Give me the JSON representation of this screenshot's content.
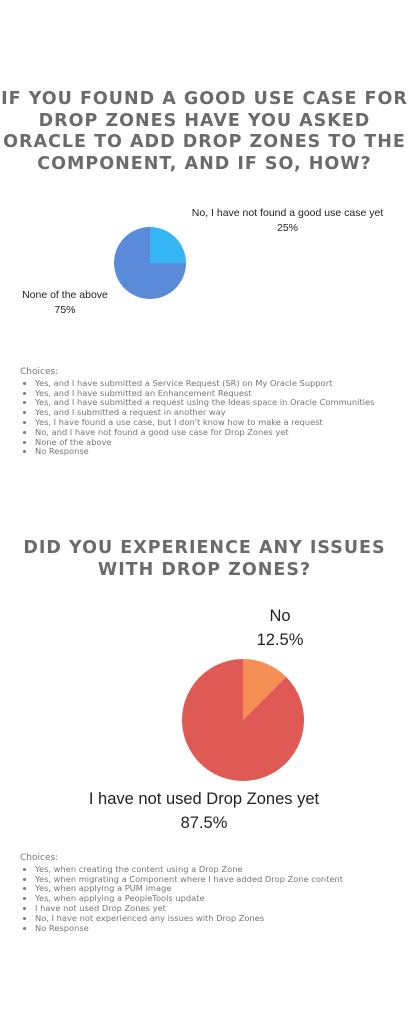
{
  "q1": {
    "title": "If you found a good use case for Drop Zones have you asked Oracle to add Drop Zones to the component, and if so, how?",
    "choices_title": "Choices:",
    "choices": [
      "Yes, and I have submitted a Service Request (SR) on My Oracle Support",
      "Yes, and I have submitted an Enhancement Request",
      "Yes, and I have submitted a request using the Ideas space in Oracle Communities",
      "Yes, and I submitted a request in another way",
      "Yes, I have found a use case, but I don't know how to make a request",
      "No, and I have not found a good use case for Drop Zones yet",
      "None of the above",
      "No Response"
    ]
  },
  "q2": {
    "title": "Did you experience any issues with Drop Zones?",
    "choices_title": "Choices:",
    "choices": [
      "Yes, when creating the content using a Drop Zone",
      "Yes, when migrating a Component where I have added Drop Zone content",
      "Yes, when applying a PUM image",
      "Yes, when applying a PeopleTools update",
      "I have not used Drop Zones yet",
      "No, I have not experienced any issues with Drop Zones",
      "No Response"
    ]
  },
  "chart_data": [
    {
      "type": "pie",
      "title": "",
      "slices": [
        {
          "label": "No, I have not found a good use case yet",
          "value": 25,
          "value_label": "25%",
          "color": "#36b5f5"
        },
        {
          "label": "None of the above",
          "value": 75,
          "value_label": "75%",
          "color": "#5a8bd8"
        }
      ]
    },
    {
      "type": "pie",
      "title": "",
      "slices": [
        {
          "label": "No",
          "value": 12.5,
          "value_label": "12.5%",
          "color": "#f58f54"
        },
        {
          "label": "I have not used Drop Zones yet",
          "value": 87.5,
          "value_label": "87.5%",
          "color": "#e05a55"
        }
      ]
    }
  ]
}
